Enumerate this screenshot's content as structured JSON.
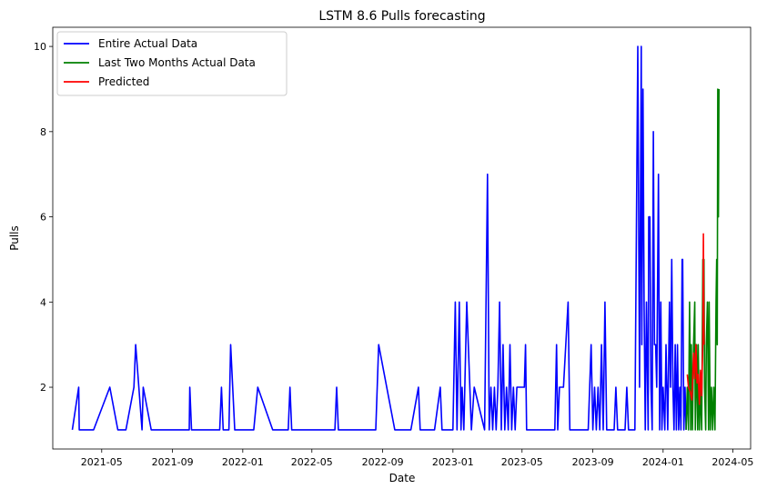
{
  "chart_data": {
    "type": "line",
    "title": "LSTM 8.6 Pulls forecasting",
    "xlabel": "Date",
    "ylabel": "Pulls",
    "xlim": [
      "2021-02-05",
      "2024-06-01"
    ],
    "ylim": [
      0.55,
      10.45
    ],
    "grid": false,
    "legend_position": "top-left",
    "x_ticks": [
      "2021-05-01",
      "2021-09-01",
      "2022-01-01",
      "2022-05-01",
      "2022-09-01",
      "2023-01-01",
      "2023-05-01",
      "2023-09-01",
      "2024-01-01",
      "2024-05-01"
    ],
    "x_tick_labels": [
      "2021-05",
      "2021-09",
      "2022-01",
      "2022-05",
      "2022-09",
      "2023-01",
      "2023-05",
      "2023-09",
      "2024-01",
      "2024-05"
    ],
    "y_ticks": [
      2,
      4,
      6,
      8,
      10
    ],
    "y_tick_labels": [
      "2",
      "4",
      "6",
      "8",
      "10"
    ],
    "series": [
      {
        "name": "Entire Actual Data",
        "color": "#0000ff",
        "points": [
          [
            "2021-03-11",
            1
          ],
          [
            "2021-03-22",
            2
          ],
          [
            "2021-03-23",
            1
          ],
          [
            "2021-04-17",
            1
          ],
          [
            "2021-05-15",
            2
          ],
          [
            "2021-05-29",
            1
          ],
          [
            "2021-06-12",
            1
          ],
          [
            "2021-06-26",
            2
          ],
          [
            "2021-06-29",
            3
          ],
          [
            "2021-07-10",
            1
          ],
          [
            "2021-07-12",
            2
          ],
          [
            "2021-07-26",
            1
          ],
          [
            "2021-09-30",
            1
          ],
          [
            "2021-10-01",
            2
          ],
          [
            "2021-10-04",
            1
          ],
          [
            "2021-11-22",
            1
          ],
          [
            "2021-11-25",
            2
          ],
          [
            "2021-11-28",
            1
          ],
          [
            "2021-12-08",
            1
          ],
          [
            "2021-12-11",
            3
          ],
          [
            "2021-12-18",
            1
          ],
          [
            "2022-01-20",
            1
          ],
          [
            "2022-01-27",
            2
          ],
          [
            "2022-02-22",
            1
          ],
          [
            "2022-03-21",
            1
          ],
          [
            "2022-03-24",
            2
          ],
          [
            "2022-03-27",
            1
          ],
          [
            "2022-06-10",
            1
          ],
          [
            "2022-06-13",
            2
          ],
          [
            "2022-06-16",
            1
          ],
          [
            "2022-08-20",
            1
          ],
          [
            "2022-08-25",
            3
          ],
          [
            "2022-09-22",
            1
          ],
          [
            "2022-10-20",
            1
          ],
          [
            "2022-11-02",
            2
          ],
          [
            "2022-11-05",
            1
          ],
          [
            "2022-11-30",
            1
          ],
          [
            "2022-12-10",
            2
          ],
          [
            "2022-12-13",
            1
          ],
          [
            "2023-01-01",
            1
          ],
          [
            "2023-01-05",
            4
          ],
          [
            "2023-01-08",
            1
          ],
          [
            "2023-01-12",
            4
          ],
          [
            "2023-01-15",
            1
          ],
          [
            "2023-01-17",
            2
          ],
          [
            "2023-01-20",
            1
          ],
          [
            "2023-01-25",
            4
          ],
          [
            "2023-02-02",
            1
          ],
          [
            "2023-02-07",
            2
          ],
          [
            "2023-02-25",
            1
          ],
          [
            "2023-03-02",
            7
          ],
          [
            "2023-03-05",
            1
          ],
          [
            "2023-03-08",
            2
          ],
          [
            "2023-03-11",
            1
          ],
          [
            "2023-03-14",
            2
          ],
          [
            "2023-03-17",
            1
          ],
          [
            "2023-03-20",
            2
          ],
          [
            "2023-03-23",
            4
          ],
          [
            "2023-03-26",
            1
          ],
          [
            "2023-03-29",
            3
          ],
          [
            "2023-04-01",
            1
          ],
          [
            "2023-04-04",
            2
          ],
          [
            "2023-04-07",
            1
          ],
          [
            "2023-04-10",
            3
          ],
          [
            "2023-04-13",
            1
          ],
          [
            "2023-04-16",
            2
          ],
          [
            "2023-04-19",
            1
          ],
          [
            "2023-04-22",
            2
          ],
          [
            "2023-05-05",
            2
          ],
          [
            "2023-05-07",
            3
          ],
          [
            "2023-05-09",
            1
          ],
          [
            "2023-06-27",
            1
          ],
          [
            "2023-06-30",
            3
          ],
          [
            "2023-07-02",
            1
          ],
          [
            "2023-07-05",
            2
          ],
          [
            "2023-07-12",
            2
          ],
          [
            "2023-07-20",
            4
          ],
          [
            "2023-07-23",
            1
          ],
          [
            "2023-08-24",
            1
          ],
          [
            "2023-08-29",
            3
          ],
          [
            "2023-09-01",
            1
          ],
          [
            "2023-09-04",
            2
          ],
          [
            "2023-09-07",
            1
          ],
          [
            "2023-09-10",
            2
          ],
          [
            "2023-09-13",
            1
          ],
          [
            "2023-09-16",
            3
          ],
          [
            "2023-09-19",
            1
          ],
          [
            "2023-09-22",
            4
          ],
          [
            "2023-09-25",
            1
          ],
          [
            "2023-10-08",
            1
          ],
          [
            "2023-10-11",
            2
          ],
          [
            "2023-10-14",
            1
          ],
          [
            "2023-10-27",
            1
          ],
          [
            "2023-10-30",
            2
          ],
          [
            "2023-11-02",
            1
          ],
          [
            "2023-11-13",
            1
          ],
          [
            "2023-11-18",
            10
          ],
          [
            "2023-11-21",
            2
          ],
          [
            "2023-11-24",
            10
          ],
          [
            "2023-11-25",
            3
          ],
          [
            "2023-11-27",
            9
          ],
          [
            "2023-11-29",
            4
          ],
          [
            "2023-12-01",
            1
          ],
          [
            "2023-12-03",
            4
          ],
          [
            "2023-12-06",
            1
          ],
          [
            "2023-12-07",
            6
          ],
          [
            "2023-12-09",
            6
          ],
          [
            "2023-12-11",
            2
          ],
          [
            "2023-12-13",
            1
          ],
          [
            "2023-12-15",
            8
          ],
          [
            "2023-12-17",
            3
          ],
          [
            "2023-12-19",
            3
          ],
          [
            "2023-12-21",
            2
          ],
          [
            "2023-12-24",
            7
          ],
          [
            "2023-12-26",
            1
          ],
          [
            "2023-12-28",
            4
          ],
          [
            "2023-12-30",
            1
          ],
          [
            "2024-01-01",
            2
          ],
          [
            "2024-01-04",
            1
          ],
          [
            "2024-01-06",
            3
          ],
          [
            "2024-01-09",
            1
          ],
          [
            "2024-01-12",
            4
          ],
          [
            "2024-01-14",
            2
          ],
          [
            "2024-01-16",
            5
          ],
          [
            "2024-01-18",
            2
          ],
          [
            "2024-01-20",
            1
          ],
          [
            "2024-01-22",
            3
          ],
          [
            "2024-01-24",
            1
          ],
          [
            "2024-01-26",
            3
          ],
          [
            "2024-01-28",
            1
          ],
          [
            "2024-01-30",
            2
          ],
          [
            "2024-02-01",
            1
          ],
          [
            "2024-02-03",
            5
          ],
          [
            "2024-02-04",
            5
          ],
          [
            "2024-02-06",
            1
          ],
          [
            "2024-02-08",
            2
          ],
          [
            "2024-02-10",
            1
          ]
        ]
      },
      {
        "name": "Last Two Months Actual Data",
        "color": "#008000",
        "points": [
          [
            "2024-02-10",
            1
          ],
          [
            "2024-02-12",
            2
          ],
          [
            "2024-02-14",
            1
          ],
          [
            "2024-02-16",
            4
          ],
          [
            "2024-02-18",
            1
          ],
          [
            "2024-02-19",
            3
          ],
          [
            "2024-02-21",
            1
          ],
          [
            "2024-02-23",
            3
          ],
          [
            "2024-02-25",
            4
          ],
          [
            "2024-02-26",
            1
          ],
          [
            "2024-02-28",
            3
          ],
          [
            "2024-03-01",
            1
          ],
          [
            "2024-03-02",
            3
          ],
          [
            "2024-03-04",
            1
          ],
          [
            "2024-03-06",
            2
          ],
          [
            "2024-03-08",
            1
          ],
          [
            "2024-03-10",
            5
          ],
          [
            "2024-03-12",
            5
          ],
          [
            "2024-03-13",
            2
          ],
          [
            "2024-03-15",
            1
          ],
          [
            "2024-03-16",
            3
          ],
          [
            "2024-03-18",
            4
          ],
          [
            "2024-03-20",
            1
          ],
          [
            "2024-03-21",
            4
          ],
          [
            "2024-03-23",
            1
          ],
          [
            "2024-03-25",
            2
          ],
          [
            "2024-03-27",
            1
          ],
          [
            "2024-03-29",
            2
          ],
          [
            "2024-03-31",
            1
          ],
          [
            "2024-04-02",
            4
          ],
          [
            "2024-04-03",
            5
          ],
          [
            "2024-04-04",
            3
          ],
          [
            "2024-04-05",
            9
          ],
          [
            "2024-04-06",
            6
          ],
          [
            "2024-04-07",
            9
          ]
        ]
      },
      {
        "name": "Predicted",
        "color": "#ff0000",
        "points": [
          [
            "2024-02-12",
            2.3
          ],
          [
            "2024-02-14",
            2.0
          ],
          [
            "2024-02-17",
            1.9
          ],
          [
            "2024-02-20",
            1.7
          ],
          [
            "2024-02-23",
            2.8
          ],
          [
            "2024-02-25",
            2.2
          ],
          [
            "2024-02-27",
            3.0
          ],
          [
            "2024-02-29",
            2.1
          ],
          [
            "2024-03-02",
            2.3
          ],
          [
            "2024-03-04",
            1.6
          ],
          [
            "2024-03-06",
            2.4
          ],
          [
            "2024-03-08",
            1.8
          ],
          [
            "2024-03-10",
            3.1
          ],
          [
            "2024-03-11",
            5.6
          ],
          [
            "2024-03-12",
            3.0
          ]
        ]
      }
    ]
  }
}
